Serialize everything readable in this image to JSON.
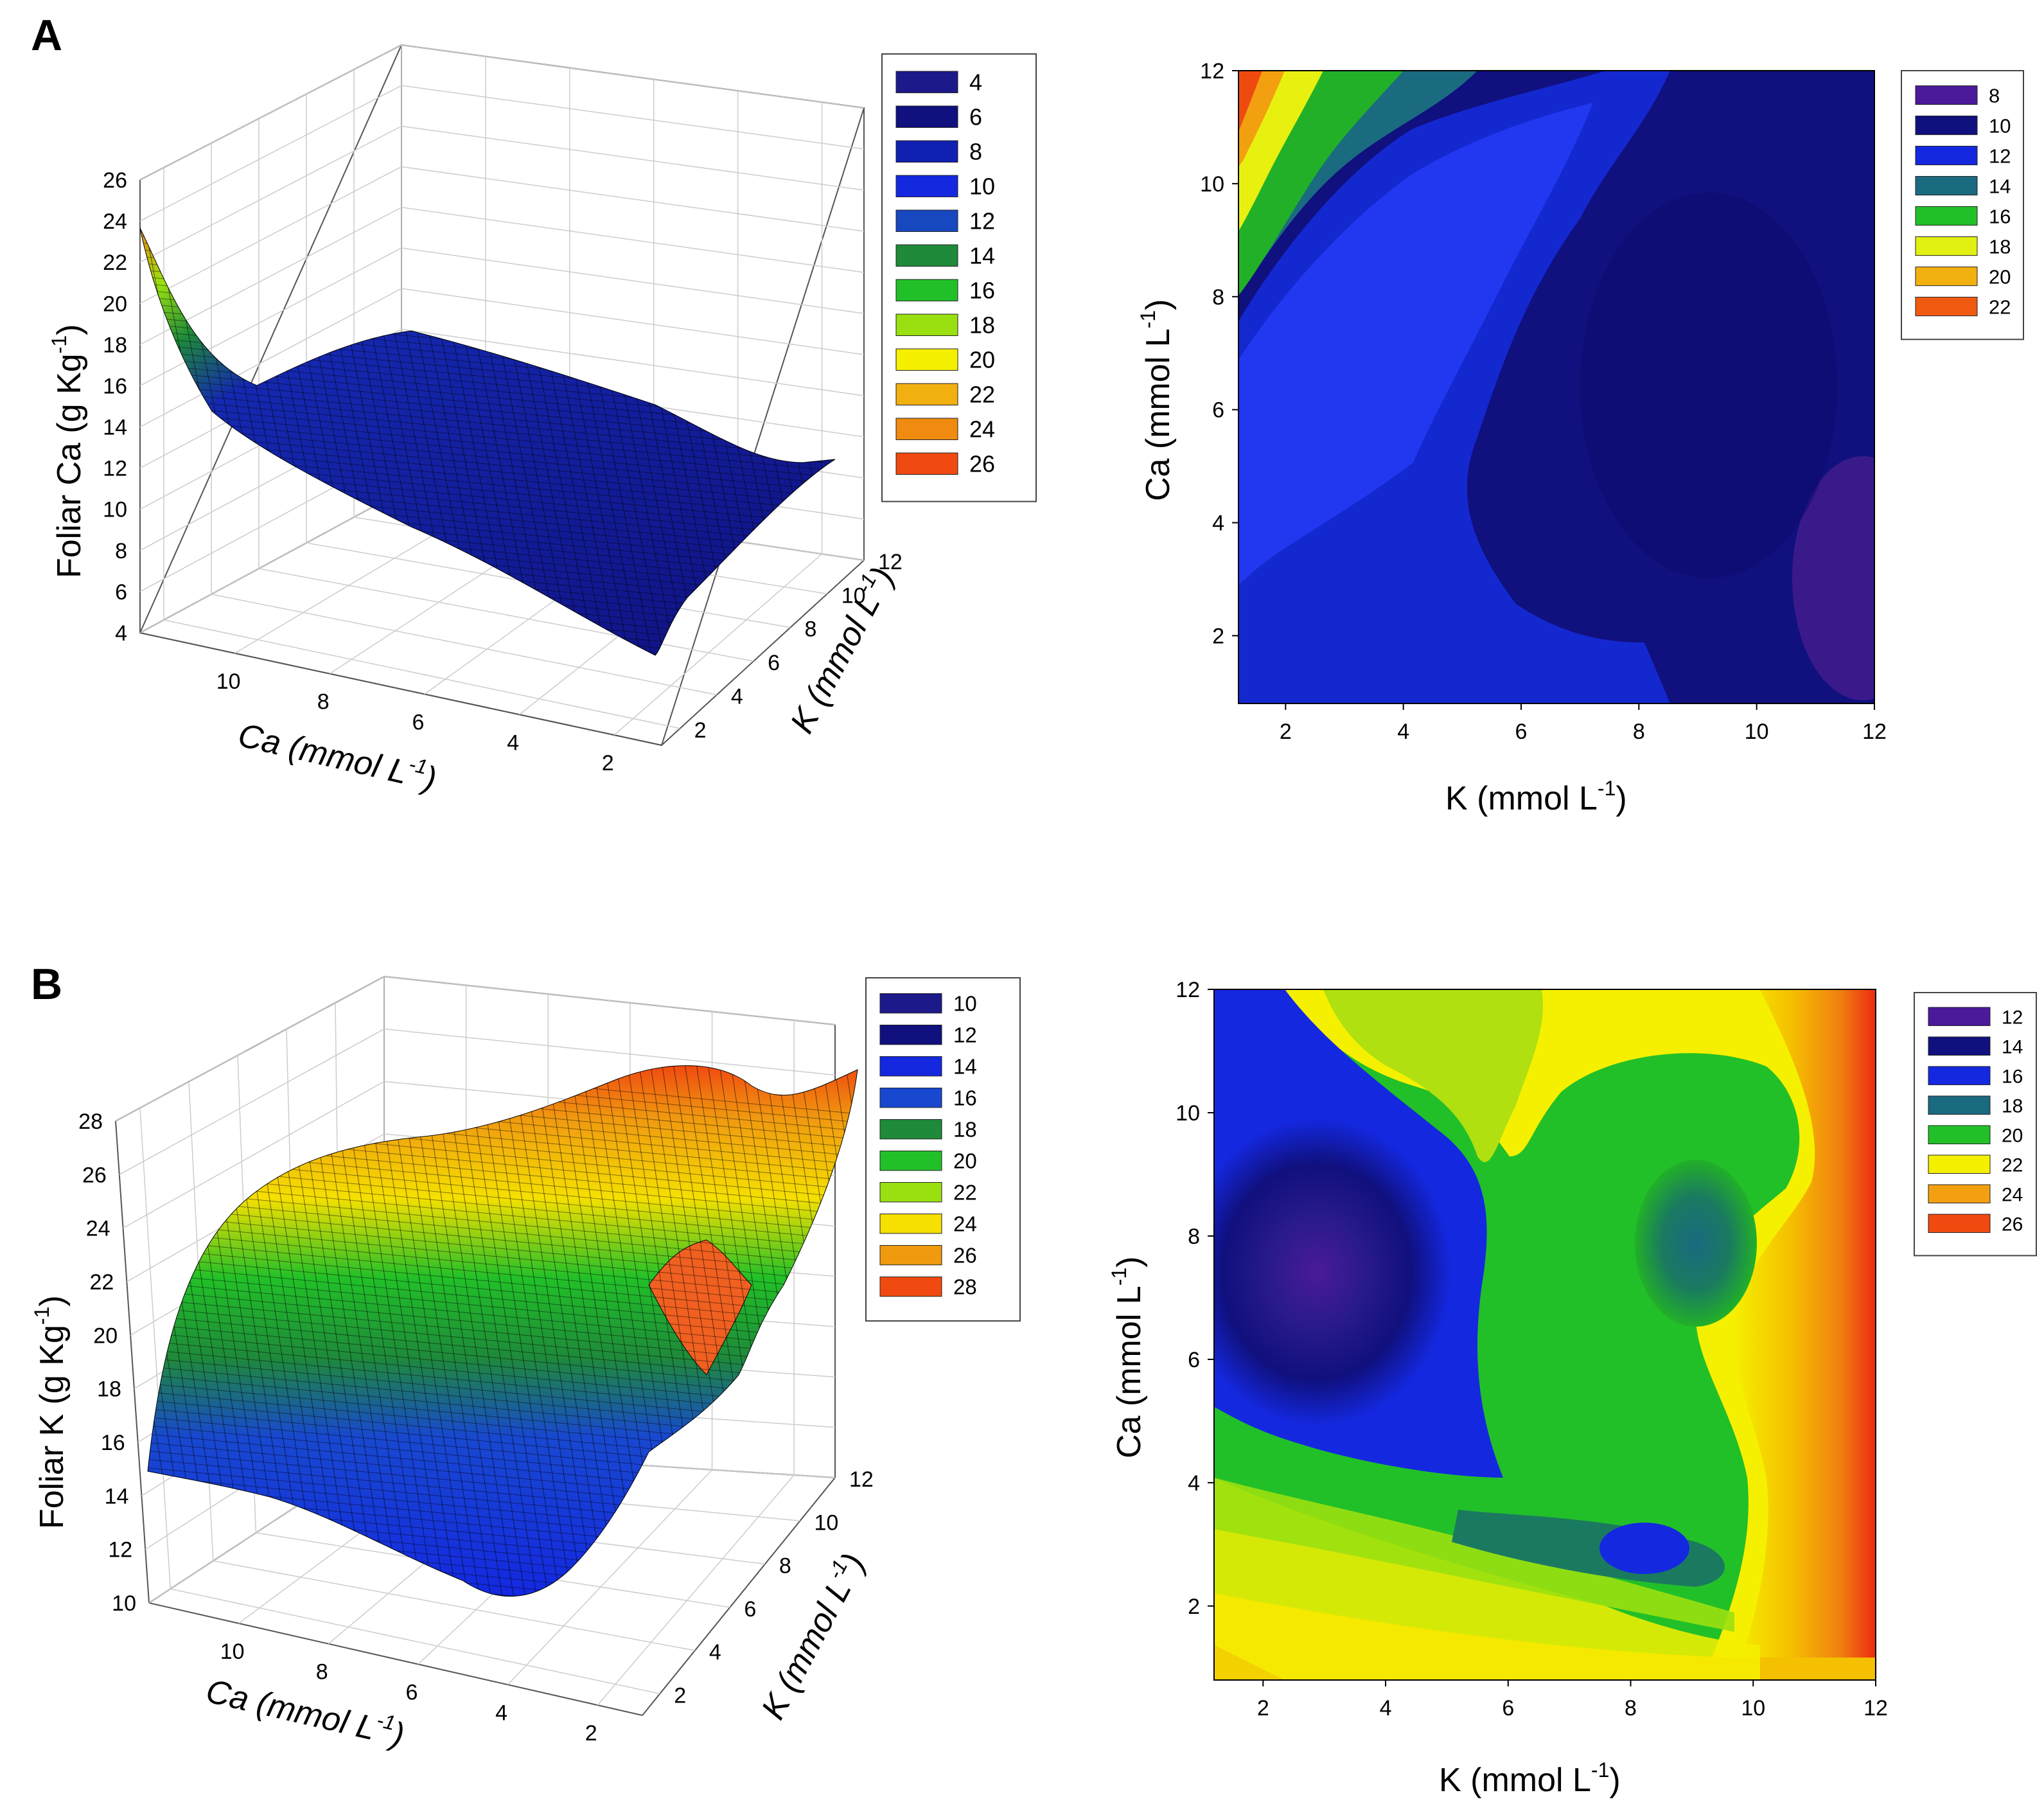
{
  "panels": [
    {
      "label": "A",
      "surface": {
        "zlabel_main": "Foliar Ca (g Kg",
        "zlabel_sup": "-1",
        "zlabel_end": ")",
        "xlabel_main": "Ca (mmol L",
        "xlabel_sup": "-1",
        "xlabel_end": ")",
        "ylabel_main": "K (mmol L",
        "ylabel_sup": "-1",
        "ylabel_end": ")"
      },
      "contour": {
        "xlabel_main": "K (mmol L",
        "xlabel_sup": "-1",
        "xlabel_end": ")",
        "ylabel_main": "Ca (mmol L",
        "ylabel_sup": "-1",
        "ylabel_end": ")"
      }
    },
    {
      "label": "B",
      "surface": {
        "zlabel_main": "Foliar K (g Kg",
        "zlabel_sup": "-1",
        "zlabel_end": ")",
        "xlabel_main": "Ca (mmol L",
        "xlabel_sup": "-1",
        "xlabel_end": ")",
        "ylabel_main": "K (mmol L",
        "ylabel_sup": "-1",
        "ylabel_end": ")"
      },
      "contour": {
        "xlabel_main": "K (mmol L",
        "xlabel_sup": "-1",
        "xlabel_end": ")",
        "ylabel_main": "Ca (mmol L",
        "ylabel_sup": "-1",
        "ylabel_end": ")"
      }
    }
  ],
  "chart_data": [
    {
      "type": "surface",
      "panel": "A",
      "x": {
        "label": "Ca (mmol L-1)",
        "ticks": [
          2,
          4,
          6,
          8,
          10
        ],
        "range": [
          1,
          12
        ]
      },
      "y": {
        "label": "K (mmol L-1)",
        "ticks": [
          2,
          4,
          6,
          8,
          10,
          12
        ],
        "range": [
          1,
          12
        ]
      },
      "z": {
        "label": "Foliar Ca (g Kg-1)",
        "ticks": [
          4,
          6,
          8,
          10,
          12,
          14,
          16,
          18,
          20,
          22,
          24,
          26
        ],
        "range": [
          4,
          26
        ]
      },
      "legend": {
        "position": "right",
        "levels": [
          4,
          6,
          8,
          10,
          12,
          14,
          16,
          18,
          20,
          22,
          24,
          26
        ],
        "colors": [
          "#1c1a8a",
          "#10107e",
          "#1020b0",
          "#1428e0",
          "#1848c0",
          "#1e8a3a",
          "#22c028",
          "#9ae010",
          "#f5f000",
          "#f2b010",
          "#f08a10",
          "#f04a10"
        ]
      },
      "corner_values": {
        "Ca12_K1": 23.5,
        "Ca12_K12": 17.5,
        "Ca1_K1": 4.5,
        "Ca1_K12": 12
      },
      "grid": true
    },
    {
      "type": "contour",
      "panel": "A",
      "x": {
        "label": "K (mmol L-1)",
        "ticks": [
          2,
          4,
          6,
          8,
          10,
          12
        ],
        "range": [
          1.2,
          12
        ]
      },
      "y": {
        "label": "Ca (mmol L-1)",
        "ticks": [
          2,
          4,
          6,
          8,
          10,
          12
        ],
        "range": [
          0.8,
          12
        ]
      },
      "legend": {
        "position": "right",
        "levels": [
          8,
          10,
          12,
          14,
          16,
          18,
          20,
          22
        ],
        "colors": [
          "#4a1a9a",
          "#10107e",
          "#1428e0",
          "#1a6a80",
          "#22c028",
          "#e0f010",
          "#f2b010",
          "#f05a10"
        ]
      }
    },
    {
      "type": "surface",
      "panel": "B",
      "x": {
        "label": "Ca (mmol L-1)",
        "ticks": [
          2,
          4,
          6,
          8,
          10
        ],
        "range": [
          1,
          12
        ]
      },
      "y": {
        "label": "K (mmol L-1)",
        "ticks": [
          2,
          4,
          6,
          8,
          10,
          12
        ],
        "range": [
          1,
          12
        ]
      },
      "z": {
        "label": "Foliar K (g Kg-1)",
        "ticks": [
          10,
          12,
          14,
          16,
          18,
          20,
          22,
          24,
          26,
          28
        ],
        "range": [
          10,
          28
        ]
      },
      "legend": {
        "position": "right",
        "levels": [
          10,
          12,
          14,
          16,
          18,
          20,
          22,
          24,
          26,
          28
        ],
        "colors": [
          "#1c1a8a",
          "#10107e",
          "#1428e0",
          "#1848d0",
          "#1e8a3a",
          "#22c028",
          "#9ae010",
          "#f5e000",
          "#f09a10",
          "#f04a10"
        ]
      },
      "grid": true
    },
    {
      "type": "contour",
      "panel": "B",
      "x": {
        "label": "K (mmol L-1)",
        "ticks": [
          2,
          4,
          6,
          8,
          10,
          12
        ],
        "range": [
          1.2,
          12
        ]
      },
      "y": {
        "label": "Ca (mmol L-1)",
        "ticks": [
          2,
          4,
          6,
          8,
          10,
          12
        ],
        "range": [
          0.8,
          12
        ]
      },
      "legend": {
        "position": "right",
        "levels": [
          12,
          14,
          16,
          18,
          20,
          22,
          24,
          26
        ],
        "colors": [
          "#4a1a9a",
          "#10107e",
          "#1428e0",
          "#1a6a80",
          "#22c028",
          "#f5f000",
          "#f2a010",
          "#f04a10"
        ]
      }
    }
  ]
}
